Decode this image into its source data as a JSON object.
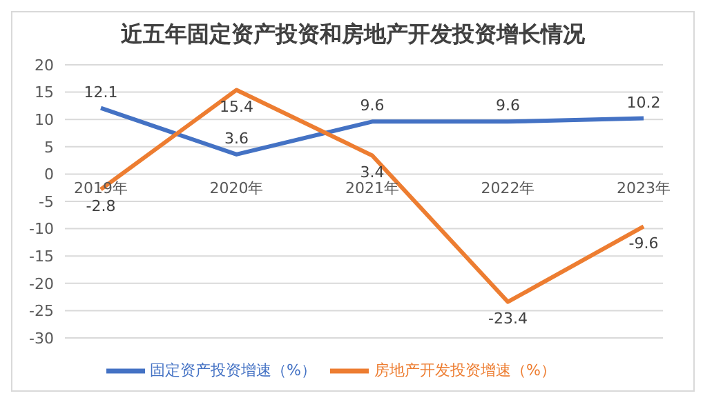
{
  "chart_data": {
    "type": "line",
    "title": "近五年固定资产投资和房地产开发投资增长情况",
    "categories": [
      "2019年",
      "2020年",
      "2021年",
      "2022年",
      "2023年"
    ],
    "series": [
      {
        "name": "固定资产投资增速（%）",
        "color": "#4472c4",
        "values": [
          12.1,
          3.6,
          9.6,
          9.6,
          10.2
        ]
      },
      {
        "name": "房地产开发投资增速（%）",
        "color": "#ed7d31",
        "values": [
          -2.8,
          15.4,
          3.4,
          -23.4,
          -9.6
        ]
      }
    ],
    "ylim": [
      -30,
      20
    ],
    "yticks": [
      -30,
      -25,
      -20,
      -15,
      -10,
      -5,
      0,
      5,
      10,
      15,
      20
    ],
    "grid": "y",
    "legend": "bottom",
    "data_labels": true,
    "marker": "none",
    "line_style": "solid"
  }
}
